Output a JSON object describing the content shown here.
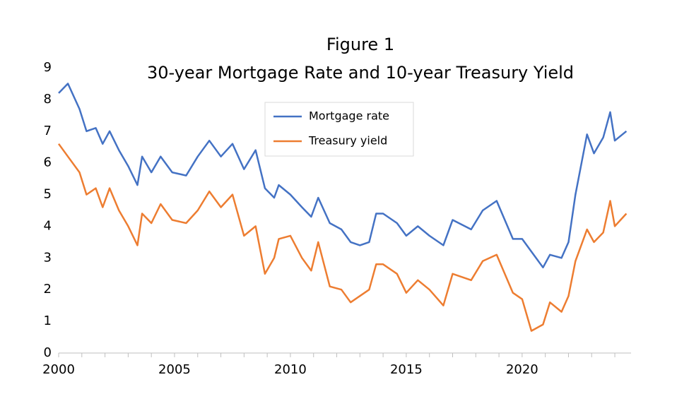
{
  "chart_data": {
    "type": "line",
    "title": "Figure 1",
    "subtitle": "30-year Mortgage Rate and 10-year Treasury Yield",
    "x": [
      2000.0,
      2000.4,
      2000.9,
      2001.2,
      2001.6,
      2001.9,
      2002.2,
      2002.6,
      2003.0,
      2003.4,
      2003.6,
      2004.0,
      2004.4,
      2004.9,
      2005.5,
      2006.0,
      2006.5,
      2007.0,
      2007.5,
      2008.0,
      2008.5,
      2008.9,
      2009.3,
      2009.5,
      2010.0,
      2010.5,
      2010.9,
      2011.2,
      2011.7,
      2012.2,
      2012.6,
      2013.0,
      2013.4,
      2013.7,
      2014.0,
      2014.6,
      2015.0,
      2015.5,
      2016.0,
      2016.6,
      2017.0,
      2017.8,
      2018.3,
      2018.9,
      2019.6,
      2020.0,
      2020.4,
      2020.9,
      2021.2,
      2021.7,
      2022.0,
      2022.3,
      2022.8,
      2023.1,
      2023.5,
      2023.8,
      2024.0,
      2024.5
    ],
    "series": [
      {
        "name": "Mortgage rate",
        "color": "#4472c4",
        "values": [
          8.2,
          8.5,
          7.7,
          7.0,
          7.1,
          6.6,
          7.0,
          6.4,
          5.9,
          5.3,
          6.2,
          5.7,
          6.2,
          5.7,
          5.6,
          6.2,
          6.7,
          6.2,
          6.6,
          5.8,
          6.4,
          5.2,
          4.9,
          5.3,
          5.0,
          4.6,
          4.3,
          4.9,
          4.1,
          3.9,
          3.5,
          3.4,
          3.5,
          4.4,
          4.4,
          4.1,
          3.7,
          4.0,
          3.7,
          3.4,
          4.2,
          3.9,
          4.5,
          4.8,
          3.6,
          3.6,
          3.2,
          2.7,
          3.1,
          3.0,
          3.5,
          5.0,
          6.9,
          6.3,
          6.8,
          7.6,
          6.7,
          7.0
        ]
      },
      {
        "name": "Treasury yield",
        "color": "#ed7d31",
        "values": [
          6.6,
          6.2,
          5.7,
          5.0,
          5.2,
          4.6,
          5.2,
          4.5,
          4.0,
          3.4,
          4.4,
          4.1,
          4.7,
          4.2,
          4.1,
          4.5,
          5.1,
          4.6,
          5.0,
          3.7,
          4.0,
          2.5,
          3.0,
          3.6,
          3.7,
          3.0,
          2.6,
          3.5,
          2.1,
          2.0,
          1.6,
          1.8,
          2.0,
          2.8,
          2.8,
          2.5,
          1.9,
          2.3,
          2.0,
          1.5,
          2.5,
          2.3,
          2.9,
          3.1,
          1.9,
          1.7,
          0.7,
          0.9,
          1.6,
          1.3,
          1.8,
          2.9,
          3.9,
          3.5,
          3.8,
          4.8,
          4.0,
          4.4
        ]
      }
    ],
    "xlim": [
      2000,
      2024.7
    ],
    "xticks": [
      2000,
      2005,
      2010,
      2015,
      2020
    ],
    "xminorticks": [
      2001,
      2002,
      2003,
      2004,
      2006,
      2007,
      2008,
      2009,
      2011,
      2012,
      2013,
      2014,
      2016,
      2017,
      2018,
      2019,
      2021,
      2022,
      2023,
      2024
    ],
    "ylim": [
      0,
      9
    ],
    "yticks": [
      0,
      1,
      2,
      3,
      4,
      5,
      6,
      7,
      8,
      9
    ],
    "grid": false,
    "legend": "top-center"
  }
}
